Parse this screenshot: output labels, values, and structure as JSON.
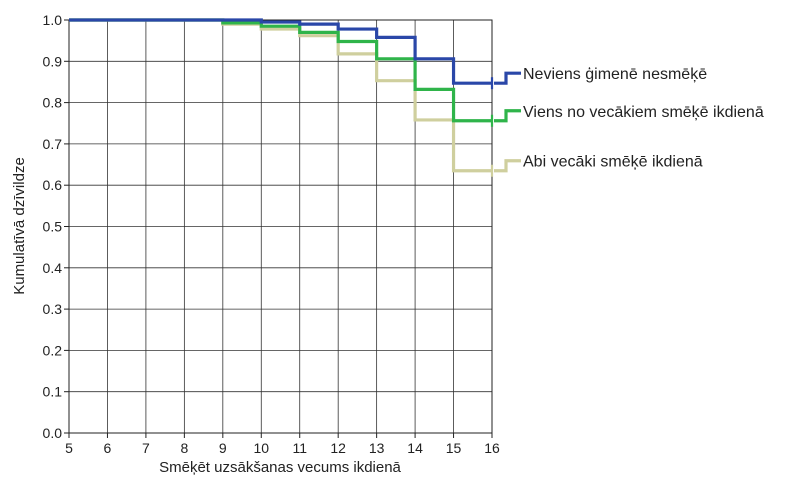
{
  "chart_data": {
    "type": "line",
    "step": true,
    "xlabel": "Smēķēt uzsākšanas vecums ikdienā",
    "ylabel": "Kumulatīvā dzīvildze",
    "xlim": [
      5,
      16
    ],
    "ylim": [
      0,
      1
    ],
    "xticks": [
      "5",
      "6",
      "7",
      "8",
      "9",
      "10",
      "11",
      "12",
      "13",
      "14",
      "15",
      "16"
    ],
    "yticks": [
      "0.0",
      "0.1",
      "0.2",
      "0.3",
      "0.4",
      "0.5",
      "0.6",
      "0.7",
      "0.8",
      "0.9",
      "1.0"
    ],
    "grid": true,
    "legend_position": "right",
    "series": [
      {
        "name": "Neviens ģimenē nesmēķē",
        "color": "#2a47a8",
        "x": [
          5,
          9,
          10,
          11,
          12,
          13,
          14,
          15,
          16
        ],
        "y": [
          1.0,
          1.0,
          0.995,
          0.99,
          0.978,
          0.958,
          0.906,
          0.847,
          0.847
        ]
      },
      {
        "name": "Viens no vecākiem smēķē ikdienā",
        "color": "#2fb44a",
        "x": [
          5,
          9,
          10,
          11,
          12,
          13,
          14,
          15,
          16
        ],
        "y": [
          1.0,
          0.993,
          0.985,
          0.97,
          0.948,
          0.906,
          0.832,
          0.756,
          0.756
        ]
      },
      {
        "name": "Abi vecāki smēķē ikdienā",
        "color": "#cfcf9e",
        "x": [
          5,
          9,
          10,
          11,
          12,
          13,
          14,
          15,
          16
        ],
        "y": [
          1.0,
          0.99,
          0.978,
          0.962,
          0.918,
          0.853,
          0.758,
          0.635,
          0.635
        ]
      }
    ]
  }
}
